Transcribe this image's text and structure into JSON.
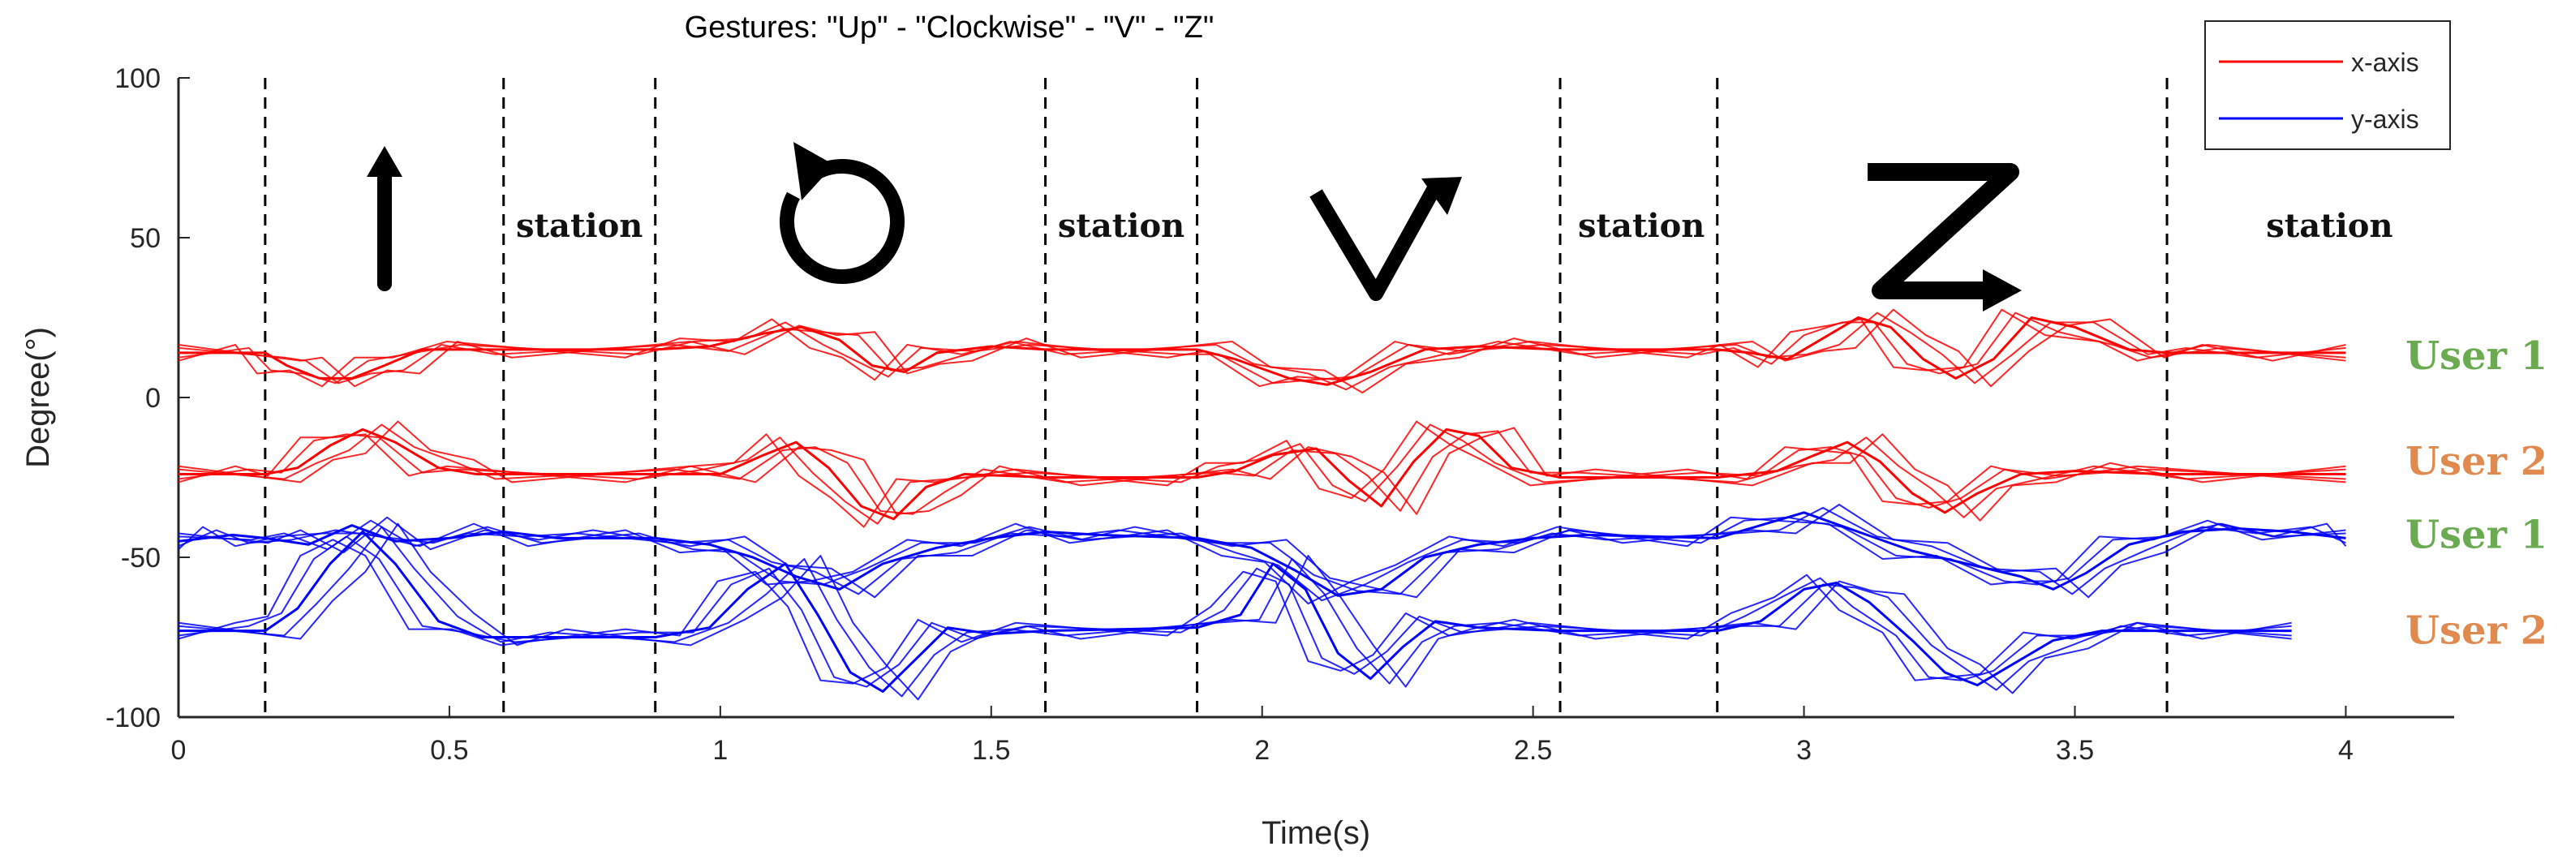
{
  "chart_data": {
    "type": "line",
    "title": "Gestures: \"Up\" - \"Clockwise\" - \"V\" - \"Z\"",
    "xlabel": "Time(s)",
    "ylabel": "Degree(°)",
    "xlim": [
      0,
      4.2
    ],
    "ylim": [
      -100,
      100
    ],
    "xticks": [
      0,
      0.5,
      1,
      1.5,
      2,
      2.5,
      3,
      3.5,
      4
    ],
    "xtick_labels": [
      "0",
      "0.5",
      "1",
      "1.5",
      "2",
      "2.5",
      "3",
      "3.5",
      "4"
    ],
    "yticks": [
      -100,
      -50,
      0,
      50,
      100
    ],
    "ytick_labels": [
      "-100",
      "-50",
      "0",
      "50",
      "100"
    ],
    "grid": false,
    "legend_position": "top-right",
    "legend": [
      {
        "label": "x-axis",
        "color": "#ff0000"
      },
      {
        "label": "y-axis",
        "color": "#0000ff"
      }
    ],
    "boundaries": [
      0.16,
      0.6,
      0.88,
      1.6,
      1.88,
      2.55,
      2.84,
      3.67
    ],
    "gestures": [
      {
        "icon": "up-arrow-icon",
        "center": 0.38
      },
      {
        "icon": "clockwise-icon",
        "center": 1.2
      },
      {
        "icon": "v-gesture-icon",
        "center": 2.2
      },
      {
        "icon": "z-gesture-icon",
        "center": 3.27
      }
    ],
    "station_labels": [
      {
        "text": "station",
        "x": 0.74
      },
      {
        "text": "station",
        "x": 1.74
      },
      {
        "text": "station",
        "x": 2.7
      },
      {
        "text": "station",
        "x": 3.97
      }
    ],
    "user_labels": [
      {
        "text": "User 1",
        "y": 13,
        "color": "#6aaa50"
      },
      {
        "text": "User 2",
        "y": -20,
        "color": "#e08a50"
      },
      {
        "text": "User 1",
        "y": -43,
        "color": "#6aaa50"
      },
      {
        "text": "User 2",
        "y": -73,
        "color": "#e08a50"
      }
    ],
    "series": [
      {
        "axis": "x-axis",
        "user": "User 1",
        "color": "#ff0000",
        "x": [
          0,
          0.16,
          0.2,
          0.26,
          0.32,
          0.38,
          0.45,
          0.55,
          0.88,
          0.98,
          1.08,
          1.15,
          1.22,
          1.28,
          1.34,
          1.4,
          1.5,
          1.6,
          1.88,
          1.95,
          2.05,
          2.12,
          2.2,
          2.3,
          2.4,
          2.55,
          2.84,
          2.9,
          2.97,
          3.03,
          3.1,
          3.16,
          3.22,
          3.28,
          3.35,
          3.42,
          3.5,
          3.6,
          3.67,
          3.8,
          4.0
        ],
        "values": [
          14,
          14,
          10,
          6,
          6,
          10,
          15,
          15,
          15,
          16,
          20,
          22,
          18,
          10,
          8,
          14,
          16,
          15,
          15,
          12,
          6,
          4,
          8,
          15,
          16,
          15,
          15,
          14,
          12,
          18,
          25,
          22,
          12,
          6,
          12,
          25,
          22,
          15,
          14,
          14,
          14
        ]
      },
      {
        "axis": "x-axis",
        "user": "User 2",
        "color": "#ff0000",
        "x": [
          0,
          0.16,
          0.22,
          0.28,
          0.34,
          0.4,
          0.48,
          0.55,
          0.88,
          1.0,
          1.08,
          1.14,
          1.2,
          1.26,
          1.32,
          1.38,
          1.45,
          1.6,
          1.88,
          1.95,
          2.02,
          2.1,
          2.16,
          2.22,
          2.28,
          2.34,
          2.4,
          2.46,
          2.55,
          2.84,
          2.95,
          3.02,
          3.08,
          3.14,
          3.2,
          3.26,
          3.32,
          3.4,
          3.5,
          3.67,
          4.0
        ],
        "values": [
          -24,
          -24,
          -22,
          -15,
          -10,
          -14,
          -22,
          -24,
          -24,
          -24,
          -18,
          -14,
          -22,
          -34,
          -38,
          -28,
          -24,
          -25,
          -25,
          -23,
          -18,
          -16,
          -26,
          -34,
          -20,
          -10,
          -12,
          -22,
          -25,
          -25,
          -23,
          -18,
          -14,
          -20,
          -30,
          -36,
          -30,
          -24,
          -23,
          -24,
          -24
        ]
      },
      {
        "axis": "y-axis",
        "user": "User 1",
        "color": "#0000ff",
        "x": [
          0,
          0.1,
          0.16,
          0.24,
          0.32,
          0.4,
          0.5,
          0.6,
          0.7,
          0.88,
          0.98,
          1.06,
          1.14,
          1.22,
          1.3,
          1.4,
          1.5,
          1.6,
          1.7,
          1.88,
          1.98,
          2.06,
          2.14,
          2.22,
          2.3,
          2.4,
          2.5,
          2.6,
          2.84,
          2.92,
          3.0,
          3.1,
          3.2,
          3.3,
          3.4,
          3.46,
          3.52,
          3.6,
          3.7,
          3.8,
          3.9,
          4.0
        ],
        "values": [
          -45,
          -43,
          -44,
          -46,
          -40,
          -45,
          -44,
          -42,
          -44,
          -44,
          -46,
          -50,
          -56,
          -60,
          -52,
          -47,
          -44,
          -42,
          -43,
          -44,
          -47,
          -54,
          -62,
          -60,
          -50,
          -46,
          -44,
          -43,
          -44,
          -40,
          -36,
          -42,
          -48,
          -52,
          -56,
          -60,
          -55,
          -46,
          -42,
          -41,
          -42,
          -44
        ]
      },
      {
        "axis": "y-axis",
        "user": "User 2",
        "color": "#0000ff",
        "x": [
          0,
          0.16,
          0.22,
          0.28,
          0.34,
          0.4,
          0.48,
          0.56,
          0.65,
          0.88,
          0.98,
          1.05,
          1.12,
          1.18,
          1.24,
          1.3,
          1.36,
          1.42,
          1.5,
          1.6,
          1.88,
          1.96,
          2.02,
          2.08,
          2.14,
          2.2,
          2.26,
          2.32,
          2.4,
          2.55,
          2.84,
          2.92,
          3.0,
          3.06,
          3.12,
          3.2,
          3.26,
          3.32,
          3.38,
          3.46,
          3.55,
          3.67,
          3.9
        ],
        "values": [
          -73,
          -73,
          -66,
          -52,
          -42,
          -52,
          -70,
          -75,
          -75,
          -75,
          -72,
          -60,
          -52,
          -68,
          -86,
          -92,
          -82,
          -72,
          -74,
          -73,
          -72,
          -68,
          -52,
          -60,
          -80,
          -88,
          -78,
          -70,
          -72,
          -73,
          -73,
          -70,
          -60,
          -58,
          -64,
          -76,
          -86,
          -90,
          -84,
          -76,
          -73,
          -73,
          -73
        ]
      }
    ]
  }
}
